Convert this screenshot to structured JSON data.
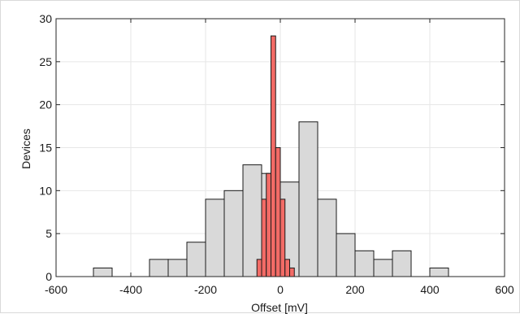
{
  "chart_data": {
    "type": "bar",
    "xlabel": "Offset [mV]",
    "ylabel": "Devices",
    "xlim": [
      -600,
      600
    ],
    "ylim": [
      0,
      30
    ],
    "x_ticks": [
      -600,
      -400,
      -200,
      0,
      200,
      400,
      600
    ],
    "y_ticks": [
      0,
      5,
      10,
      15,
      20,
      25,
      30
    ],
    "grid": true,
    "series": [
      {
        "color": "#d9d9d9",
        "bin_width": 50,
        "bins": [
          {
            "x0": -500,
            "x1": -450,
            "value": 1
          },
          {
            "x0": -450,
            "x1": -400,
            "value": 0
          },
          {
            "x0": -400,
            "x1": -350,
            "value": 0
          },
          {
            "x0": -350,
            "x1": -300,
            "value": 2
          },
          {
            "x0": -300,
            "x1": -250,
            "value": 2
          },
          {
            "x0": -250,
            "x1": -200,
            "value": 4
          },
          {
            "x0": -200,
            "x1": -150,
            "value": 9
          },
          {
            "x0": -150,
            "x1": -100,
            "value": 10
          },
          {
            "x0": -100,
            "x1": -50,
            "value": 13
          },
          {
            "x0": -50,
            "x1": 0,
            "value": 12
          },
          {
            "x0": 0,
            "x1": 50,
            "value": 11
          },
          {
            "x0": 50,
            "x1": 100,
            "value": 18
          },
          {
            "x0": 100,
            "x1": 150,
            "value": 9
          },
          {
            "x0": 150,
            "x1": 200,
            "value": 5
          },
          {
            "x0": 200,
            "x1": 250,
            "value": 3
          },
          {
            "x0": 250,
            "x1": 300,
            "value": 2
          },
          {
            "x0": 300,
            "x1": 350,
            "value": 3
          },
          {
            "x0": 350,
            "x1": 400,
            "value": 0
          },
          {
            "x0": 400,
            "x1": 450,
            "value": 1
          },
          {
            "x0": 450,
            "x1": 500,
            "value": 0
          },
          {
            "x0": 500,
            "x1": 550,
            "value": 0
          }
        ]
      },
      {
        "color": "#f26b66",
        "bin_width": 12.5,
        "bins": [
          {
            "x0": -62.5,
            "x1": -50,
            "value": 2
          },
          {
            "x0": -50,
            "x1": -37.5,
            "value": 9
          },
          {
            "x0": -37.5,
            "x1": -25,
            "value": 12
          },
          {
            "x0": -25,
            "x1": -12.5,
            "value": 28
          },
          {
            "x0": -12.5,
            "x1": 0,
            "value": 15
          },
          {
            "x0": 0,
            "x1": 12.5,
            "value": 9
          },
          {
            "x0": 12.5,
            "x1": 25,
            "value": 2
          },
          {
            "x0": 25,
            "x1": 37.5,
            "value": 1
          }
        ]
      }
    ]
  }
}
